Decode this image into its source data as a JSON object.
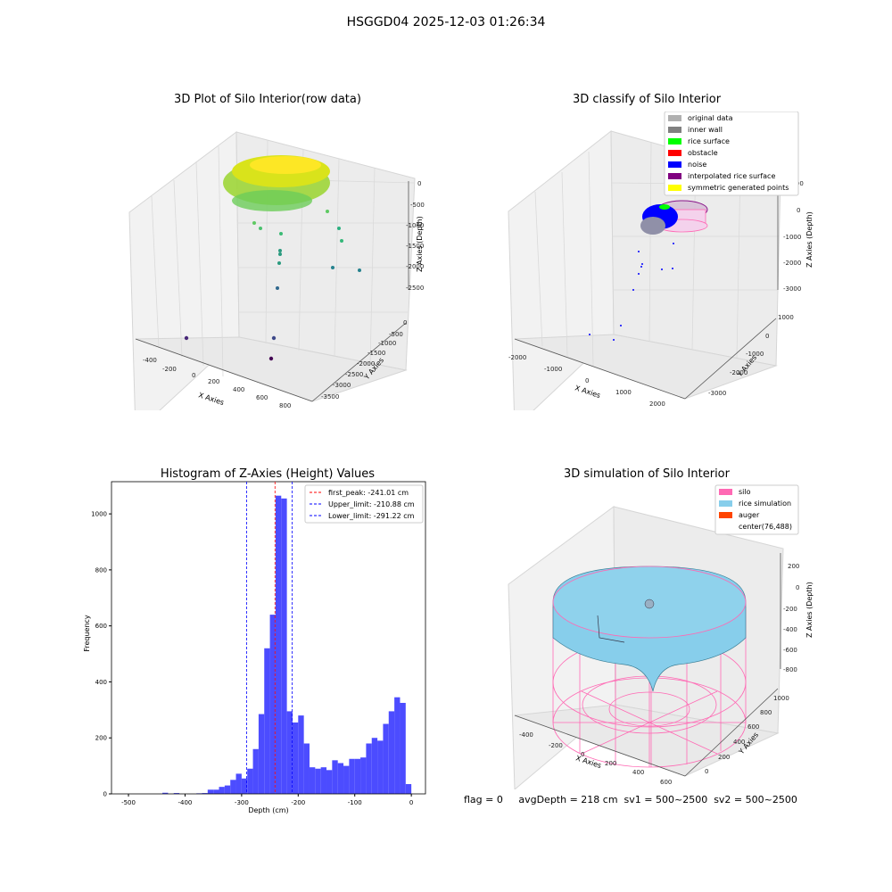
{
  "suptitle": "HSGGD04 2025-12-03 01:26:34",
  "footer": "flag = 0     avgDepth = 218 cm  sv1 = 500~2500  sv2 = 500~2500",
  "colors": {
    "histogram_bar": "#4c4cff",
    "first_peak_line": "#ff0000",
    "limit_lines": "#0000ff",
    "pane_fill": "#f2f2f2",
    "grid": "#d9d9d9",
    "silo": "#ff69b4",
    "rice_simulation": "#87ceeb",
    "auger": "#ff4500"
  },
  "chart_data": [
    {
      "type": "scatter",
      "subtype": "3d",
      "title": "3D Plot of Silo Interior(row data)",
      "xlabel": "X Axies",
      "ylabel": "Y Axies",
      "zlabel": "Z Axies (Depth)",
      "xticks": [
        "-400",
        "-200",
        "0",
        "200",
        "400",
        "600",
        "800"
      ],
      "yticks": [
        "0",
        "-500",
        "-1000",
        "-1500",
        "-2000",
        "-2500",
        "-3000",
        "-3500"
      ],
      "zticks": [
        "0",
        "-500",
        "-1000",
        "-1500",
        "-2000",
        "-2500"
      ],
      "colormap": "viridis"
    },
    {
      "type": "scatter",
      "subtype": "3d",
      "title": "3D classify of Silo Interior",
      "xlabel": "X Axies",
      "ylabel": "Y Axies",
      "zlabel": "Z Axies (Depth)",
      "xticks": [
        "-2000",
        "-1000",
        "0",
        "1000",
        "2000"
      ],
      "yticks": [
        "1000",
        "0",
        "-1000",
        "-2000",
        "-3000"
      ],
      "zticks": [
        "1000",
        "0",
        "-1000",
        "-2000",
        "-3000"
      ],
      "legend_position": "top-right",
      "legend": [
        {
          "label": "original data",
          "color": "#b0b0b0"
        },
        {
          "label": "inner wall",
          "color": "#808080"
        },
        {
          "label": "rice surface",
          "color": "#00ff00"
        },
        {
          "label": "obstacle",
          "color": "#ff0000"
        },
        {
          "label": "noise",
          "color": "#0000ff"
        },
        {
          "label": "interpolated rice surface",
          "color": "#800080"
        },
        {
          "label": "symmetric generated points",
          "color": "#ffff00"
        }
      ]
    },
    {
      "type": "bar",
      "subtype": "histogram",
      "title": "Histogram of Z-Axies (Height) Values",
      "xlabel": "Depth (cm)",
      "ylabel": "Frequency",
      "xlim": [
        -530,
        25
      ],
      "ylim": [
        0,
        1115
      ],
      "xticks": [
        -500,
        -400,
        -300,
        -200,
        -100,
        0
      ],
      "yticks": [
        0,
        200,
        400,
        600,
        800,
        1000
      ],
      "bin_width": 10,
      "bin_starts": [
        -450,
        -440,
        -430,
        -420,
        -410,
        -400,
        -390,
        -380,
        -370,
        -360,
        -350,
        -340,
        -330,
        -320,
        -310,
        -300,
        -290,
        -280,
        -270,
        -260,
        -250,
        -240,
        -230,
        -220,
        -210,
        -200,
        -190,
        -180,
        -170,
        -160,
        -150,
        -140,
        -130,
        -120,
        -110,
        -100,
        -90,
        -80,
        -70,
        -60,
        -50,
        -40,
        -30,
        -20,
        -10
      ],
      "values": [
        0,
        4,
        0,
        3,
        0,
        0,
        0,
        2,
        3,
        15,
        15,
        25,
        30,
        50,
        72,
        55,
        90,
        160,
        285,
        520,
        640,
        1065,
        1055,
        295,
        255,
        280,
        180,
        95,
        90,
        95,
        85,
        120,
        110,
        100,
        125,
        125,
        130,
        180,
        200,
        190,
        250,
        295,
        345,
        325,
        35
      ],
      "vlines": [
        {
          "label": "first_peak: -241.01 cm",
          "x": -241.01,
          "color": "#ff0000"
        },
        {
          "label": "Upper_limit: -210.88 cm",
          "x": -210.88,
          "color": "#0000ff"
        },
        {
          "label": "Lower_limit: -291.22 cm",
          "x": -291.22,
          "color": "#0000ff"
        }
      ],
      "legend_position": "top-right"
    },
    {
      "type": "area",
      "subtype": "3d-surface",
      "title": "3D simulation of Silo Interior",
      "xlabel": "X Axies",
      "ylabel": "Y Axies",
      "zlabel": "Z Axies (Depth)",
      "xticks": [
        "-400",
        "-200",
        "0",
        "200",
        "400",
        "600"
      ],
      "yticks": [
        "0",
        "200",
        "400",
        "600",
        "800",
        "1000"
      ],
      "zticks": [
        "200",
        "0",
        "-200",
        "-400",
        "-600",
        "-800"
      ],
      "legend_position": "top-right",
      "legend": [
        {
          "label": "silo",
          "color": "#ff69b4"
        },
        {
          "label": "rice simulation",
          "color": "#87ceeb"
        },
        {
          "label": "auger",
          "color": "#ff4500"
        },
        {
          "label": "center(76,488)",
          "color": "none"
        }
      ]
    }
  ]
}
